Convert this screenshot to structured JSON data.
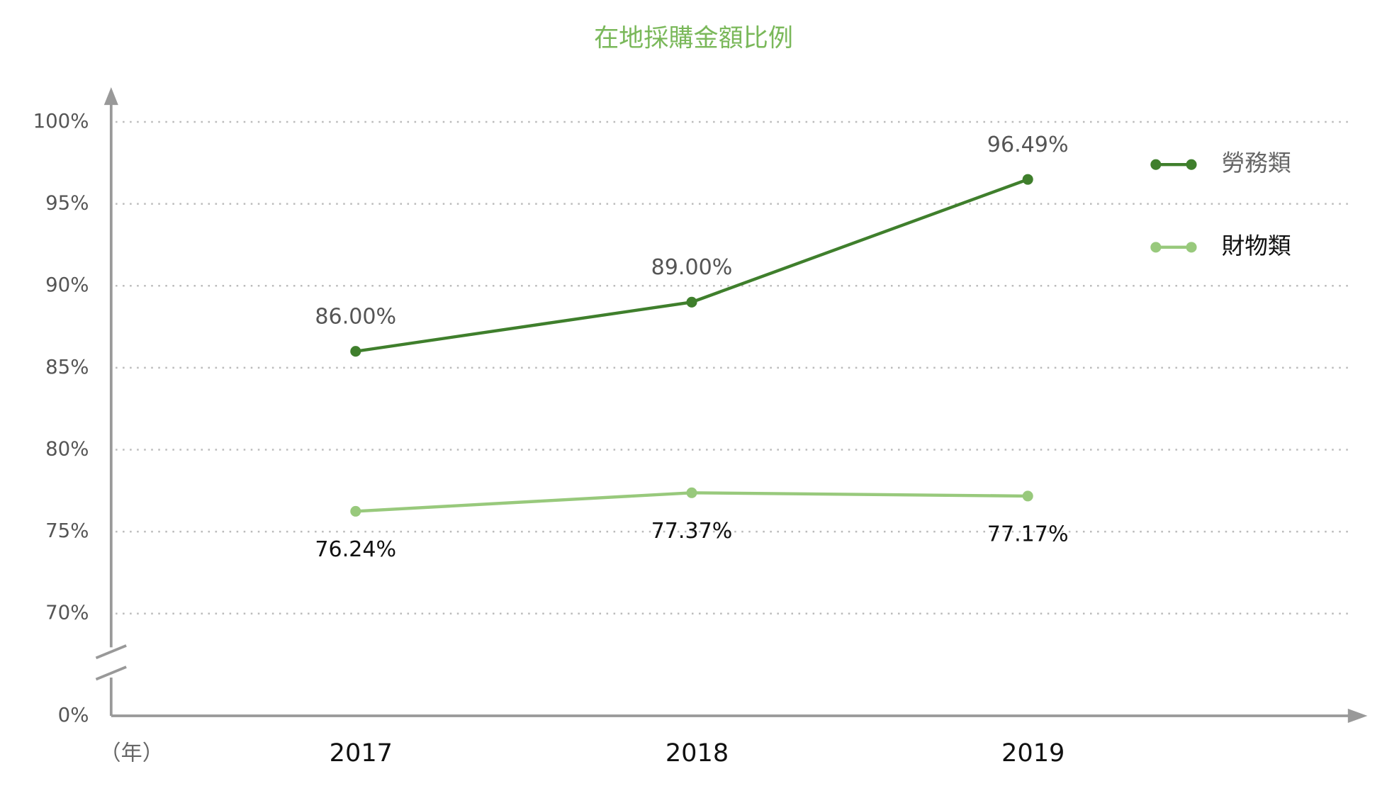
{
  "chart_data": {
    "type": "line",
    "title": "在地採購金額比例",
    "x_label": "（年）",
    "categories": [
      "2017",
      "2018",
      "2019"
    ],
    "series": [
      {
        "name": "勞務類",
        "color": "#3f7f2c",
        "values": [
          86,
          89,
          96.49
        ],
        "value_labels": [
          "86.00%",
          "89.00%",
          "96.49%"
        ]
      },
      {
        "name": "財物類",
        "color": "#98c97c",
        "values": [
          76.24,
          77.37,
          77.17
        ],
        "value_labels": [
          "76.24%",
          "77.37%",
          "77.17%"
        ]
      }
    ],
    "ylim": [
      70,
      100
    ],
    "yticks": [
      {
        "value": 0,
        "label": "0%"
      },
      {
        "value": 70,
        "label": "70%"
      },
      {
        "value": 75,
        "label": "75%"
      },
      {
        "value": 80,
        "label": "80%"
      },
      {
        "value": 85,
        "label": "85%"
      },
      {
        "value": 90,
        "label": "90%"
      },
      {
        "value": 95,
        "label": "95%"
      },
      {
        "value": 100,
        "label": "100%"
      }
    ],
    "axis_break": true,
    "grid": true,
    "legend": "upper right"
  }
}
